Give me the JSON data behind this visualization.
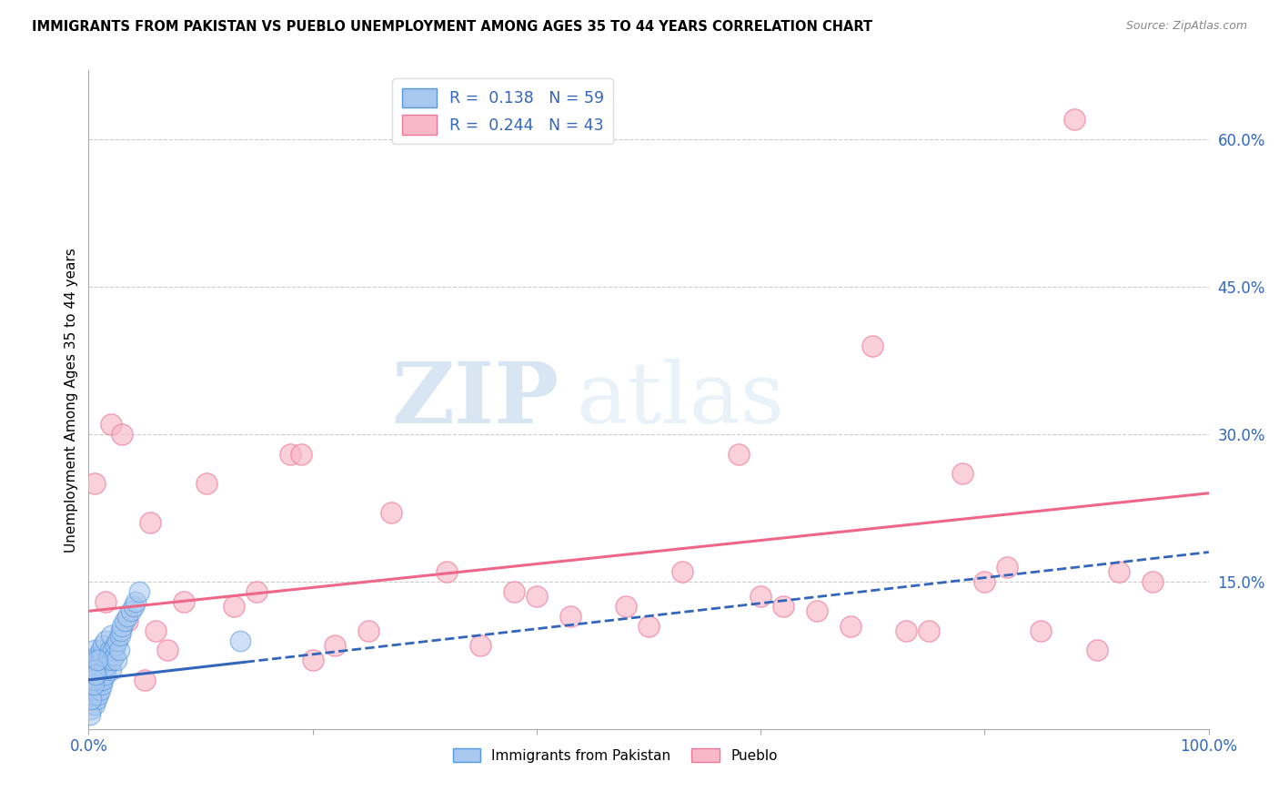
{
  "title": "IMMIGRANTS FROM PAKISTAN VS PUEBLO UNEMPLOYMENT AMONG AGES 35 TO 44 YEARS CORRELATION CHART",
  "source": "Source: ZipAtlas.com",
  "ylabel": "Unemployment Among Ages 35 to 44 years",
  "xlim": [
    0,
    100
  ],
  "ylim": [
    0,
    67
  ],
  "xticks": [
    0,
    20,
    40,
    60,
    80,
    100
  ],
  "xticklabels": [
    "0.0%",
    "",
    "",
    "",
    "",
    "100.0%"
  ],
  "yticks": [
    0,
    15,
    30,
    45,
    60
  ],
  "yticklabels": [
    "",
    "15.0%",
    "30.0%",
    "45.0%",
    "60.0%"
  ],
  "grid_yticks": [
    15,
    30,
    45,
    60
  ],
  "R_blue": 0.138,
  "N_blue": 59,
  "R_pink": 0.244,
  "N_pink": 43,
  "blue_fill_color": "#A8C8F0",
  "pink_fill_color": "#F8B8C8",
  "blue_edge_color": "#5599DD",
  "pink_edge_color": "#EE7799",
  "blue_line_color": "#3366BB",
  "pink_line_color": "#EE6688",
  "watermark_zip": "ZIP",
  "watermark_atlas": "atlas",
  "background_color": "#FFFFFF",
  "blue_line_x0": 0,
  "blue_line_y0": 5.0,
  "blue_line_x1": 100,
  "blue_line_y1": 18.0,
  "blue_solid_end": 14,
  "pink_line_x0": 0,
  "pink_line_y0": 12.0,
  "pink_line_x1": 100,
  "pink_line_y1": 24.0,
  "blue_scatter_x": [
    0.1,
    0.2,
    0.2,
    0.3,
    0.3,
    0.4,
    0.4,
    0.5,
    0.5,
    0.5,
    0.6,
    0.6,
    0.7,
    0.7,
    0.8,
    0.8,
    0.9,
    0.9,
    1.0,
    1.0,
    1.1,
    1.1,
    1.2,
    1.2,
    1.3,
    1.3,
    1.4,
    1.5,
    1.5,
    1.6,
    1.7,
    1.8,
    1.9,
    2.0,
    2.0,
    2.1,
    2.2,
    2.3,
    2.4,
    2.5,
    2.6,
    2.7,
    2.8,
    2.9,
    3.0,
    3.2,
    3.5,
    3.8,
    4.0,
    4.2,
    4.5,
    0.15,
    0.25,
    0.35,
    0.45,
    0.55,
    0.65,
    0.75,
    13.5
  ],
  "blue_scatter_y": [
    3.0,
    2.0,
    5.0,
    4.0,
    7.0,
    3.5,
    6.0,
    2.5,
    5.5,
    8.0,
    4.0,
    7.0,
    3.0,
    6.0,
    4.5,
    7.5,
    3.5,
    6.5,
    4.0,
    7.0,
    5.0,
    8.0,
    4.5,
    7.5,
    5.0,
    8.5,
    6.0,
    5.5,
    9.0,
    6.5,
    7.0,
    7.5,
    8.0,
    6.0,
    9.5,
    7.0,
    8.0,
    7.5,
    8.5,
    7.0,
    9.0,
    8.0,
    9.5,
    10.0,
    10.5,
    11.0,
    11.5,
    12.0,
    12.5,
    13.0,
    14.0,
    1.5,
    3.0,
    5.0,
    4.5,
    6.0,
    5.5,
    7.0,
    9.0
  ],
  "pink_scatter_x": [
    0.5,
    1.5,
    2.0,
    3.0,
    5.5,
    6.0,
    8.5,
    10.5,
    13.0,
    15.0,
    18.0,
    19.0,
    22.0,
    27.0,
    32.0,
    35.0,
    38.0,
    43.0,
    48.0,
    53.0,
    58.0,
    62.0,
    65.0,
    70.0,
    73.0,
    78.0,
    82.0,
    88.0,
    92.0,
    95.0,
    3.5,
    7.0,
    25.0,
    40.0,
    50.0,
    60.0,
    68.0,
    75.0,
    80.0,
    85.0,
    90.0,
    5.0,
    20.0
  ],
  "pink_scatter_y": [
    25.0,
    13.0,
    31.0,
    30.0,
    21.0,
    10.0,
    13.0,
    25.0,
    12.5,
    14.0,
    28.0,
    28.0,
    8.5,
    22.0,
    16.0,
    8.5,
    14.0,
    11.5,
    12.5,
    16.0,
    28.0,
    12.5,
    12.0,
    39.0,
    10.0,
    26.0,
    16.5,
    62.0,
    16.0,
    15.0,
    11.0,
    8.0,
    10.0,
    13.5,
    10.5,
    13.5,
    10.5,
    10.0,
    15.0,
    10.0,
    8.0,
    5.0,
    7.0
  ]
}
